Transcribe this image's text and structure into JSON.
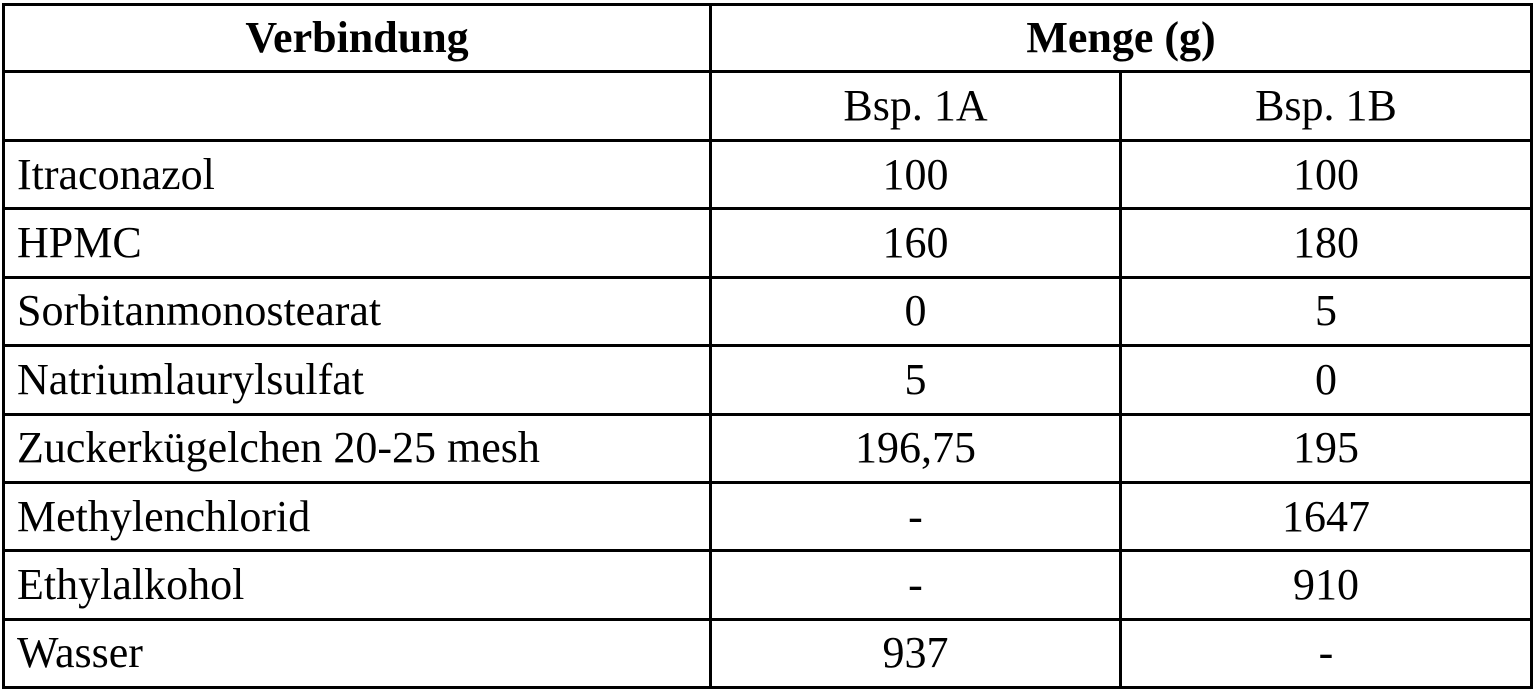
{
  "table": {
    "header": {
      "compound_label": "Verbindung",
      "amount_label": "Menge (g)"
    },
    "subheader": {
      "col_a": "Bsp. 1A",
      "col_b": "Bsp. 1B"
    },
    "rows": [
      {
        "name": "Itraconazol",
        "a": "100",
        "b": "100"
      },
      {
        "name": "HPMC",
        "a": "160",
        "b": "180"
      },
      {
        "name": "Sorbitanmonostearat",
        "a": "0",
        "b": "5"
      },
      {
        "name": "Natriumlaurylsulfat",
        "a": "5",
        "b": "0"
      },
      {
        "name": "Zuckerkügelchen 20-25 mesh",
        "a": "196,75",
        "b": "195"
      },
      {
        "name": "Methylenchlorid",
        "a": "-",
        "b": "1647"
      },
      {
        "name": "Ethylalkohol",
        "a": "-",
        "b": "910"
      },
      {
        "name": "Wasser",
        "a": "937",
        "b": "-"
      }
    ]
  }
}
